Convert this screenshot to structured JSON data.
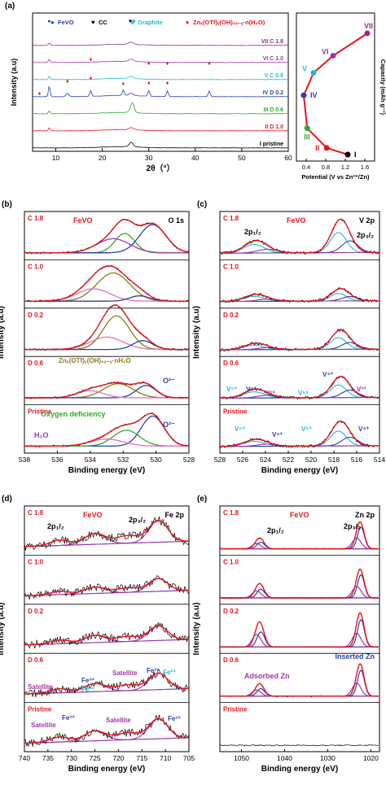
{
  "colors": {
    "red": "#e8141c",
    "blue": "#2b3fa8",
    "cyan": "#27b7d6",
    "purple": "#a035a8",
    "green": "#2fa82f",
    "olive": "#8a7a1c",
    "black": "#000000",
    "pink": "#e070c0",
    "lightblue": "#7fd0ee"
  },
  "panel_a": {
    "label": "(a)",
    "legend": [
      {
        "name": "FeVO",
        "marker": "●",
        "color": "#2b3fa8"
      },
      {
        "name": "CC",
        "marker": "♥",
        "color": "#000000"
      },
      {
        "name": "Graphite",
        "marker": "♣",
        "color": "#27b7d6"
      },
      {
        "name": "Znₓ(OTf)ᵧ(OH)₂ₓ₋ᵧ·n(H₂O)",
        "marker": "♦",
        "color": "#e8141c"
      }
    ],
    "xrd": {
      "xlabel": "2θ（°）",
      "ylabel": "Intensity (a.u)",
      "xticks": [
        "10",
        "20",
        "30",
        "40",
        "50",
        "60"
      ],
      "traces": [
        {
          "label": "VII C 1.8",
          "color": "#8b2f8b"
        },
        {
          "label": "VI C 1.0",
          "color": "#a035a8"
        },
        {
          "label": "V C 0.6",
          "color": "#27b7d6"
        },
        {
          "label": "IV D 0.2",
          "color": "#2b3fa8"
        },
        {
          "label": "III D 0.6",
          "color": "#2fa82f"
        },
        {
          "label": "II D 1.0",
          "color": "#e8141c"
        },
        {
          "label": "I pristine",
          "color": "#000000"
        }
      ]
    },
    "gcd": {
      "xlabel": "Potential (V vs Zn²⁺/Zn)",
      "ylabel": "Capacity (mAh g⁻¹)",
      "xticks": [
        "0.4",
        "0.8",
        "1.2",
        "1.6"
      ],
      "points": [
        {
          "id": "I",
          "v": 1.25,
          "c": 0.0,
          "color": "#000000"
        },
        {
          "id": "II",
          "v": 0.82,
          "c": 0.05,
          "color": "#e8141c"
        },
        {
          "id": "III",
          "v": 0.42,
          "c": 0.2,
          "color": "#2fa82f"
        },
        {
          "id": "IV",
          "v": 0.35,
          "c": 0.45,
          "color": "#2b3fa8"
        },
        {
          "id": "V",
          "v": 0.55,
          "c": 0.62,
          "color": "#27b7d6"
        },
        {
          "id": "VI",
          "v": 0.95,
          "c": 0.75,
          "color": "#a035a8"
        },
        {
          "id": "VII",
          "v": 1.65,
          "c": 0.92,
          "color": "#8b2f8b"
        }
      ]
    }
  },
  "panel_b": {
    "label": "(b)",
    "title": "O 1s",
    "sub": "FeVO",
    "xlabel": "Binding energy (eV)",
    "ylabel": "Intensity (a.u)",
    "xticks": [
      "538",
      "536",
      "534",
      "532",
      "530",
      "528"
    ],
    "rows": [
      "C 1.8",
      "C 1.0",
      "D 0.2",
      "D 0.6",
      "Pristine"
    ],
    "annotations": {
      "zn": "Znₓ(OTf)ᵧ(OH)₂ₓ₋ᵧ·nH₂O",
      "o2": "O²⁻",
      "defic": "Oxygen deficiency",
      "h2o": "H₂O",
      "o2b": "O²⁻"
    }
  },
  "panel_c": {
    "label": "(c)",
    "title": "V 2p",
    "sub": "FeVO",
    "xlabel": "Binding energy (eV)",
    "ylabel": "Intensity (a.u)",
    "xticks": [
      "528",
      "526",
      "524",
      "522",
      "520",
      "518",
      "516",
      "514"
    ],
    "rows": [
      "C 1.8",
      "C 1.0",
      "D 0.2",
      "D 0.6",
      "Pristine"
    ],
    "peaks": [
      "2p₁/₂",
      "2p₃/₂"
    ],
    "species": {
      "v5": "V⁵⁺",
      "v4": "V⁴⁺",
      "v3": "V³⁺"
    }
  },
  "panel_d": {
    "label": "(d)",
    "title": "Fe 2p",
    "sub": "FeVO",
    "xlabel": "Binding energy (eV)",
    "ylabel": "Intensity (a.u)",
    "xticks": [
      "740",
      "735",
      "730",
      "725",
      "720",
      "715",
      "710",
      "705"
    ],
    "rows": [
      "C 1.8",
      "C 1.0",
      "D 0.2",
      "D 0.6",
      "Pristine"
    ],
    "peaks": [
      "2p₁/₂",
      "2p₃/₂"
    ],
    "species": {
      "sat": "Satellite",
      "fe3": "Fe³⁺",
      "fe2": "Fe²⁺"
    }
  },
  "panel_e": {
    "label": "(e)",
    "title": "Zn 2p",
    "sub": "FeVO",
    "xlabel": "Binding energy (eV)",
    "ylabel": "Intensity (a.u)",
    "xticks": [
      "1050",
      "1040",
      "1030",
      "1020"
    ],
    "rows": [
      "C 1.8",
      "C 1.0",
      "D 0.2",
      "D 0.6",
      "Pristine"
    ],
    "peaks": [
      "2p₁/₂",
      "2p₃/₂"
    ],
    "species": {
      "ins": "Inserted Zn",
      "ads": "Adsorbed Zn"
    }
  },
  "chart_data": [
    {
      "type": "line",
      "title": "",
      "xlabel": "2θ（°）",
      "ylabel": "Intensity (a.u)",
      "xlim": [
        5,
        60
      ],
      "series": [
        {
          "name": "I pristine"
        },
        {
          "name": "II D 1.0"
        },
        {
          "name": "III D 0.6"
        },
        {
          "name": "IV D 0.2"
        },
        {
          "name": "V C 0.6"
        },
        {
          "name": "VI C 1.0"
        },
        {
          "name": "VII C 1.8"
        }
      ],
      "peaks_2theta": {
        "FeVO": [
          8.6
        ],
        "CC": [
          26.0
        ],
        "Graphite": [
          26.5
        ],
        "Zn_salt": [
          6.5,
          12.5,
          17.5,
          24.5,
          30.0,
          34.0,
          43.0
        ]
      }
    },
    {
      "type": "line",
      "title": "",
      "xlabel": "Potential (V vs Zn²⁺/Zn)",
      "ylabel": "Capacity (mAh g⁻¹)",
      "xlim": [
        0.2,
        1.8
      ]
    },
    {
      "type": "line",
      "title": "O 1s",
      "xlabel": "Binding energy (eV)",
      "xlim": [
        538,
        528
      ]
    },
    {
      "type": "line",
      "title": "V 2p",
      "xlabel": "Binding energy (eV)",
      "xlim": [
        528,
        514
      ]
    },
    {
      "type": "line",
      "title": "Fe 2p",
      "xlabel": "Binding energy (eV)",
      "xlim": [
        740,
        705
      ]
    },
    {
      "type": "line",
      "title": "Zn 2p",
      "xlabel": "Binding energy (eV)",
      "xlim": [
        1055,
        1018
      ]
    }
  ]
}
